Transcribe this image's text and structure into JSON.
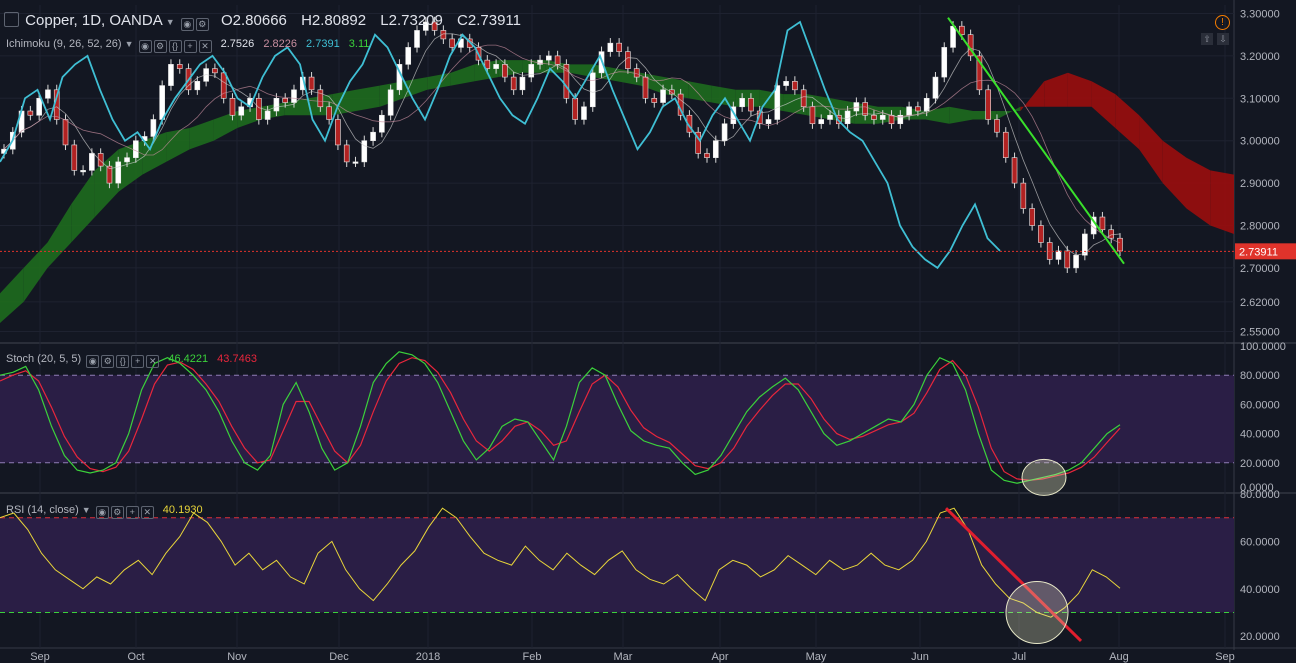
{
  "header": {
    "symbol": "Copper, 1D, OANDA",
    "open": "O2.80666",
    "high": "H2.80892",
    "low": "L2.73209",
    "close": "C2.73911"
  },
  "indicators": {
    "ichimoku": {
      "label": "Ichimoku (9, 26, 52, 26)",
      "v1": "2.7526",
      "v2": "2.8226",
      "v3": "2.7391",
      "v4": "3.11"
    },
    "stoch": {
      "label": "Stoch (20, 5, 5)",
      "k": "46.4221",
      "d": "43.7463"
    },
    "rsi": {
      "label": "RSI (14, close)",
      "value": "40.1930"
    }
  },
  "colors": {
    "background": "#131722",
    "candle_up": "#ffffff",
    "candle_down": "#b22222",
    "cloud_bull": "#1e6b1e",
    "cloud_bear": "#9b0d0d",
    "lagging_span": "#3fbfd4",
    "conversion_line": "#cfcfcf",
    "base_line": "#c98fa0",
    "stoch_k": "#3bd13b",
    "stoch_d": "#e8263c",
    "oscillator_band": "#2a1e45",
    "rsi_line": "#e8d53a",
    "trendline_price": "#39e02b",
    "trendline_rsi": "#e01e2e",
    "last_price": "#e0332b"
  },
  "chart_data": {
    "type": "candlestick",
    "x_ticks": [
      "Sep",
      "Oct",
      "Nov",
      "Dec",
      "2018",
      "Feb",
      "Mar",
      "Apr",
      "May",
      "Jun",
      "Jul",
      "Aug",
      "Sep"
    ],
    "panes": [
      {
        "name": "price",
        "ylim": [
          2.53,
          3.32
        ],
        "y_ticks": [
          "3.30000",
          "3.20000",
          "3.10000",
          "3.00000",
          "2.90000",
          "2.80000",
          "2.70000",
          "2.62000",
          "2.55000"
        ],
        "last_price_label": "2.73911",
        "last_price": 2.73911,
        "close_series": [
          2.98,
          3.02,
          3.07,
          3.06,
          3.1,
          3.12,
          3.05,
          2.99,
          2.93,
          2.93,
          2.97,
          2.94,
          2.9,
          2.95,
          2.96,
          3.0,
          3.01,
          3.05,
          3.13,
          3.18,
          3.17,
          3.12,
          3.14,
          3.17,
          3.16,
          3.1,
          3.06,
          3.08,
          3.1,
          3.05,
          3.07,
          3.1,
          3.09,
          3.12,
          3.15,
          3.12,
          3.08,
          3.05,
          2.99,
          2.95,
          2.95,
          3.0,
          3.02,
          3.06,
          3.12,
          3.18,
          3.22,
          3.26,
          3.28,
          3.26,
          3.24,
          3.22,
          3.24,
          3.22,
          3.19,
          3.17,
          3.18,
          3.15,
          3.12,
          3.15,
          3.18,
          3.19,
          3.2,
          3.18,
          3.1,
          3.05,
          3.08,
          3.16,
          3.21,
          3.23,
          3.21,
          3.17,
          3.15,
          3.1,
          3.09,
          3.12,
          3.11,
          3.06,
          3.02,
          2.97,
          2.96,
          3.0,
          3.04,
          3.08,
          3.1,
          3.07,
          3.04,
          3.05,
          3.13,
          3.14,
          3.12,
          3.08,
          3.04,
          3.05,
          3.06,
          3.04,
          3.07,
          3.09,
          3.06,
          3.05,
          3.06,
          3.04,
          3.06,
          3.08,
          3.07,
          3.1,
          3.15,
          3.22,
          3.27,
          3.25,
          3.2,
          3.12,
          3.05,
          3.02,
          2.96,
          2.9,
          2.84,
          2.8,
          2.76,
          2.72,
          2.74,
          2.7,
          2.73,
          2.78,
          2.82,
          2.79,
          2.77,
          2.74
        ],
        "lagging_span": [
          2.95,
          3.0,
          3.1,
          3.12,
          3.05,
          3.15,
          3.18,
          3.2,
          3.12,
          3.05,
          3.0,
          3.02,
          2.98,
          3.05,
          3.1,
          3.14,
          3.18,
          3.2,
          3.16,
          3.1,
          3.08,
          3.15,
          3.2,
          3.22,
          3.18,
          3.05,
          3.0,
          3.08,
          3.14,
          3.18,
          3.25,
          3.22,
          3.16,
          3.1,
          3.05,
          3.12,
          3.2,
          3.25,
          3.22,
          3.16,
          3.1,
          3.06,
          3.04,
          3.1,
          3.17,
          3.14,
          3.1,
          3.15,
          3.2,
          3.12,
          3.05,
          2.98,
          3.02,
          3.08,
          3.1,
          3.04,
          3.0,
          3.06,
          3.1,
          3.05,
          3.0,
          3.08,
          3.12,
          3.26,
          3.28,
          3.2,
          3.12,
          3.05,
          3.02,
          3.0,
          2.95,
          2.9,
          2.8,
          2.75,
          2.72,
          2.7,
          2.74,
          2.8,
          2.85,
          2.77,
          2.74
        ],
        "cloud_upper": [
          2.64,
          2.7,
          2.76,
          2.85,
          2.93,
          2.98,
          3.0,
          3.02,
          3.03,
          3.05,
          3.07,
          3.08,
          3.09,
          3.1,
          3.11,
          3.12,
          3.13,
          3.14,
          3.15,
          3.16,
          3.18,
          3.19,
          3.19,
          3.19,
          3.18,
          3.18,
          3.17,
          3.16,
          3.15,
          3.14,
          3.13,
          3.12,
          3.12,
          3.11,
          3.11,
          3.1,
          3.09,
          3.08,
          3.08,
          3.07,
          3.08,
          3.07,
          3.07,
          3.07,
          3.14,
          3.16,
          3.14,
          3.11,
          3.06,
          3.0,
          2.96,
          2.93,
          2.92
        ],
        "cloud_lower": [
          2.57,
          2.62,
          2.7,
          2.76,
          2.82,
          2.88,
          2.92,
          2.95,
          2.98,
          3.0,
          3.03,
          3.05,
          3.06,
          3.06,
          3.06,
          3.07,
          3.08,
          3.1,
          3.12,
          3.13,
          3.14,
          3.15,
          3.16,
          3.16,
          3.16,
          3.15,
          3.14,
          3.13,
          3.11,
          3.1,
          3.09,
          3.08,
          3.08,
          3.07,
          3.06,
          3.05,
          3.04,
          3.04,
          3.05,
          3.05,
          3.04,
          3.05,
          3.05,
          3.08,
          3.08,
          3.08,
          3.08,
          3.03,
          2.98,
          2.9,
          2.84,
          2.8,
          2.78
        ],
        "trendline": {
          "from": [
            "Jun",
            3.29
          ],
          "to": [
            "Aug",
            2.71
          ]
        }
      },
      {
        "name": "stoch",
        "ylim": [
          0,
          100
        ],
        "y_ticks": [
          "100.0000",
          "80.0000",
          "60.0000",
          "40.0000",
          "20.0000",
          "0.0000"
        ],
        "band": [
          20,
          80
        ],
        "k": [
          80,
          82,
          86,
          70,
          45,
          25,
          15,
          13,
          15,
          20,
          40,
          70,
          88,
          92,
          88,
          80,
          70,
          55,
          35,
          20,
          15,
          25,
          60,
          75,
          55,
          30,
          15,
          20,
          45,
          75,
          88,
          96,
          94,
          88,
          75,
          55,
          35,
          22,
          30,
          45,
          50,
          48,
          35,
          22,
          45,
          75,
          85,
          80,
          60,
          42,
          35,
          32,
          30,
          20,
          12,
          15,
          25,
          40,
          55,
          65,
          72,
          78,
          70,
          55,
          40,
          32,
          35,
          40,
          45,
          50,
          48,
          60,
          80,
          92,
          88,
          70,
          40,
          15,
          8,
          6,
          8,
          10,
          12,
          15,
          20,
          30,
          40,
          46
        ],
        "d": [
          76,
          80,
          83,
          76,
          58,
          38,
          24,
          16,
          14,
          17,
          28,
          50,
          74,
          87,
          89,
          84,
          74,
          62,
          45,
          30,
          20,
          22,
          42,
          62,
          62,
          45,
          28,
          20,
          32,
          55,
          76,
          88,
          92,
          90,
          82,
          68,
          50,
          35,
          28,
          35,
          45,
          48,
          42,
          32,
          35,
          55,
          74,
          80,
          72,
          56,
          44,
          38,
          34,
          26,
          18,
          16,
          20,
          30,
          45,
          56,
          66,
          74,
          74,
          64,
          50,
          40,
          36,
          38,
          42,
          46,
          48,
          54,
          68,
          84,
          90,
          80,
          58,
          30,
          14,
          9,
          8,
          9,
          11,
          13,
          17,
          24,
          34,
          43.7
        ],
        "highlight_circle": "Jul"
      },
      {
        "name": "rsi",
        "ylim": [
          15,
          80
        ],
        "y_ticks": [
          "80.0000",
          "60.0000",
          "40.0000",
          "20.0000"
        ],
        "band": [
          30,
          70
        ],
        "values": [
          70,
          72,
          65,
          55,
          48,
          44,
          40,
          45,
          42,
          48,
          52,
          46,
          55,
          62,
          72,
          68,
          60,
          50,
          55,
          48,
          52,
          45,
          42,
          55,
          60,
          48,
          40,
          35,
          42,
          50,
          56,
          66,
          74,
          70,
          62,
          55,
          52,
          50,
          58,
          52,
          48,
          55,
          50,
          46,
          52,
          56,
          48,
          44,
          42,
          46,
          40,
          35,
          48,
          52,
          50,
          45,
          48,
          54,
          50,
          46,
          52,
          48,
          50,
          55,
          50,
          48,
          52,
          60,
          72,
          74,
          65,
          50,
          42,
          36,
          34,
          30,
          28,
          32,
          38,
          48,
          45,
          40.2
        ],
        "trendline": {
          "from": [
            "Jun",
            74
          ],
          "to": [
            "Jul",
            18
          ]
        },
        "highlight_circle": "Jul"
      }
    ]
  }
}
